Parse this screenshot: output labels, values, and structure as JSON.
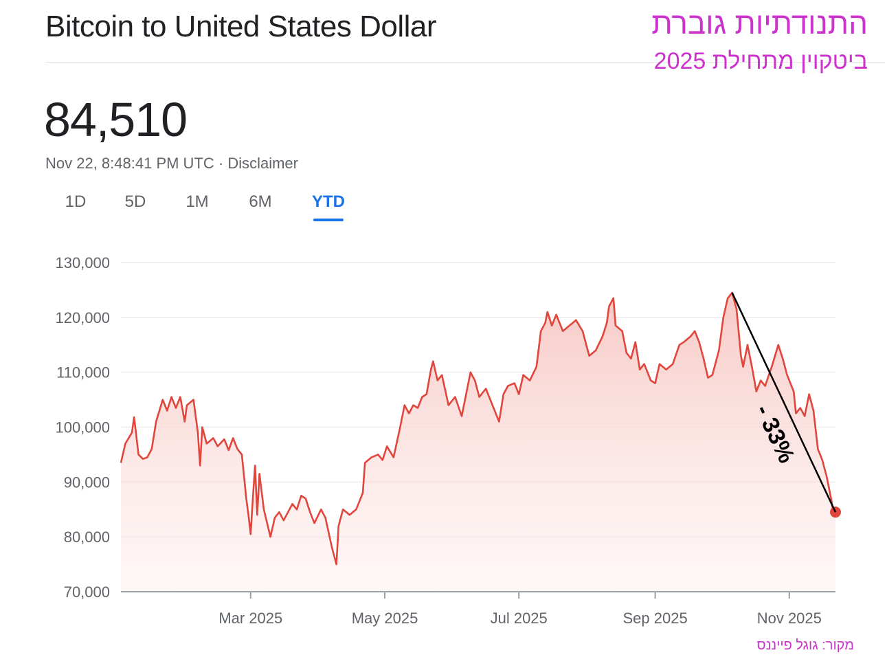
{
  "header": {
    "title": "Bitcoin to United States Dollar",
    "heb_title": "התנודתיות גוברת",
    "heb_subtitle": "ביטקוין מתחילת 2025"
  },
  "quote": {
    "price": "84,510",
    "timestamp": "Nov 22, 8:48:41 PM UTC · Disclaimer"
  },
  "tabs": [
    {
      "label": "1D",
      "active": false
    },
    {
      "label": "5D",
      "active": false
    },
    {
      "label": "1M",
      "active": false
    },
    {
      "label": "6M",
      "active": false
    },
    {
      "label": "YTD",
      "active": true
    }
  ],
  "source_note": "מקור: גוגל פייננס",
  "colors": {
    "line": "#e0463c",
    "fill_top": "#f6c6c2",
    "grid": "#ececec",
    "accent": "#1a73e8",
    "annotation": "#cc33cc"
  },
  "chart_data": {
    "type": "area",
    "title": "Bitcoin to United States Dollar",
    "xlabel": "",
    "ylabel": "",
    "ylim": [
      70000,
      130000
    ],
    "xlim": [
      "2025-01-01",
      "2025-11-22"
    ],
    "yticks": [
      70000,
      80000,
      90000,
      100000,
      110000,
      120000,
      130000
    ],
    "ytick_labels": [
      "70,000",
      "80,000",
      "90,000",
      "100,000",
      "110,000",
      "120,000",
      "130,000"
    ],
    "xticks": [
      "2025-03-01",
      "2025-05-01",
      "2025-07-01",
      "2025-09-01",
      "2025-11-01"
    ],
    "xtick_labels": [
      "Mar 2025",
      "May 2025",
      "Jul 2025",
      "Sep 2025",
      "Nov 2025"
    ],
    "grid": true,
    "legend": "none",
    "series": [
      {
        "points": [
          [
            "2025-01-01",
            93500
          ],
          [
            "2025-01-03",
            97000
          ],
          [
            "2025-01-06",
            99000
          ],
          [
            "2025-01-07",
            101800
          ],
          [
            "2025-01-09",
            95000
          ],
          [
            "2025-01-11",
            94200
          ],
          [
            "2025-01-13",
            94500
          ],
          [
            "2025-01-15",
            96000
          ],
          [
            "2025-01-17",
            101000
          ],
          [
            "2025-01-20",
            105000
          ],
          [
            "2025-01-22",
            103000
          ],
          [
            "2025-01-24",
            105500
          ],
          [
            "2025-01-26",
            103500
          ],
          [
            "2025-01-28",
            105500
          ],
          [
            "2025-01-30",
            101000
          ],
          [
            "2025-01-31",
            104000
          ],
          [
            "2025-02-03",
            105000
          ],
          [
            "2025-02-05",
            99000
          ],
          [
            "2025-02-06",
            93000
          ],
          [
            "2025-02-07",
            100000
          ],
          [
            "2025-02-09",
            97000
          ],
          [
            "2025-02-12",
            98000
          ],
          [
            "2025-02-14",
            96500
          ],
          [
            "2025-02-17",
            97800
          ],
          [
            "2025-02-19",
            95800
          ],
          [
            "2025-02-21",
            98000
          ],
          [
            "2025-02-23",
            96000
          ],
          [
            "2025-02-25",
            95000
          ],
          [
            "2025-02-27",
            87000
          ],
          [
            "2025-02-28",
            84000
          ],
          [
            "2025-03-01",
            80500
          ],
          [
            "2025-03-02",
            87000
          ],
          [
            "2025-03-03",
            93000
          ],
          [
            "2025-03-04",
            84000
          ],
          [
            "2025-03-05",
            91500
          ],
          [
            "2025-03-07",
            85000
          ],
          [
            "2025-03-10",
            80000
          ],
          [
            "2025-03-12",
            83500
          ],
          [
            "2025-03-14",
            84500
          ],
          [
            "2025-03-16",
            83000
          ],
          [
            "2025-03-18",
            84500
          ],
          [
            "2025-03-20",
            86000
          ],
          [
            "2025-03-22",
            85000
          ],
          [
            "2025-03-24",
            87500
          ],
          [
            "2025-03-26",
            87000
          ],
          [
            "2025-03-28",
            84500
          ],
          [
            "2025-03-30",
            82500
          ],
          [
            "2025-04-02",
            85000
          ],
          [
            "2025-04-04",
            83500
          ],
          [
            "2025-04-07",
            78000
          ],
          [
            "2025-04-09",
            75000
          ],
          [
            "2025-04-10",
            82000
          ],
          [
            "2025-04-12",
            85000
          ],
          [
            "2025-04-15",
            84000
          ],
          [
            "2025-04-18",
            85000
          ],
          [
            "2025-04-21",
            88000
          ],
          [
            "2025-04-22",
            93500
          ],
          [
            "2025-04-25",
            94500
          ],
          [
            "2025-04-28",
            95000
          ],
          [
            "2025-04-30",
            94000
          ],
          [
            "2025-05-02",
            96500
          ],
          [
            "2025-05-05",
            94500
          ],
          [
            "2025-05-08",
            100000
          ],
          [
            "2025-05-10",
            104000
          ],
          [
            "2025-05-12",
            102500
          ],
          [
            "2025-05-14",
            104000
          ],
          [
            "2025-05-16",
            103500
          ],
          [
            "2025-05-18",
            105500
          ],
          [
            "2025-05-20",
            106000
          ],
          [
            "2025-05-22",
            110500
          ],
          [
            "2025-05-23",
            112000
          ],
          [
            "2025-05-25",
            108500
          ],
          [
            "2025-05-27",
            109500
          ],
          [
            "2025-05-30",
            104000
          ],
          [
            "2025-06-02",
            105500
          ],
          [
            "2025-06-05",
            102000
          ],
          [
            "2025-06-09",
            110000
          ],
          [
            "2025-06-11",
            108500
          ],
          [
            "2025-06-13",
            105500
          ],
          [
            "2025-06-16",
            107000
          ],
          [
            "2025-06-19",
            104000
          ],
          [
            "2025-06-22",
            101000
          ],
          [
            "2025-06-24",
            106000
          ],
          [
            "2025-06-26",
            107500
          ],
          [
            "2025-06-29",
            108000
          ],
          [
            "2025-07-01",
            106000
          ],
          [
            "2025-07-03",
            109500
          ],
          [
            "2025-07-06",
            108500
          ],
          [
            "2025-07-09",
            111000
          ],
          [
            "2025-07-11",
            117500
          ],
          [
            "2025-07-13",
            119000
          ],
          [
            "2025-07-14",
            121000
          ],
          [
            "2025-07-16",
            118500
          ],
          [
            "2025-07-18",
            120500
          ],
          [
            "2025-07-21",
            117500
          ],
          [
            "2025-07-24",
            118500
          ],
          [
            "2025-07-27",
            119500
          ],
          [
            "2025-07-30",
            117500
          ],
          [
            "2025-08-02",
            113000
          ],
          [
            "2025-08-05",
            114000
          ],
          [
            "2025-08-08",
            116500
          ],
          [
            "2025-08-10",
            119000
          ],
          [
            "2025-08-11",
            122000
          ],
          [
            "2025-08-13",
            123500
          ],
          [
            "2025-08-14",
            118500
          ],
          [
            "2025-08-17",
            117500
          ],
          [
            "2025-08-19",
            113500
          ],
          [
            "2025-08-21",
            112500
          ],
          [
            "2025-08-23",
            115500
          ],
          [
            "2025-08-25",
            110500
          ],
          [
            "2025-08-27",
            111500
          ],
          [
            "2025-08-30",
            108500
          ],
          [
            "2025-09-01",
            108000
          ],
          [
            "2025-09-03",
            111500
          ],
          [
            "2025-09-06",
            110500
          ],
          [
            "2025-09-09",
            111500
          ],
          [
            "2025-09-12",
            115000
          ],
          [
            "2025-09-14",
            115500
          ],
          [
            "2025-09-17",
            116500
          ],
          [
            "2025-09-19",
            117500
          ],
          [
            "2025-09-21",
            115500
          ],
          [
            "2025-09-23",
            112500
          ],
          [
            "2025-09-25",
            109000
          ],
          [
            "2025-09-27",
            109500
          ],
          [
            "2025-09-30",
            114000
          ],
          [
            "2025-10-02",
            120000
          ],
          [
            "2025-10-04",
            123500
          ],
          [
            "2025-10-06",
            124500
          ],
          [
            "2025-10-08",
            121500
          ],
          [
            "2025-10-10",
            113000
          ],
          [
            "2025-10-11",
            111000
          ],
          [
            "2025-10-13",
            115000
          ],
          [
            "2025-10-15",
            111000
          ],
          [
            "2025-10-17",
            106500
          ],
          [
            "2025-10-19",
            108500
          ],
          [
            "2025-10-21",
            107500
          ],
          [
            "2025-10-24",
            111000
          ],
          [
            "2025-10-27",
            115000
          ],
          [
            "2025-10-29",
            112500
          ],
          [
            "2025-10-31",
            109500
          ],
          [
            "2025-11-03",
            106500
          ],
          [
            "2025-11-04",
            102500
          ],
          [
            "2025-11-06",
            103500
          ],
          [
            "2025-11-08",
            102000
          ],
          [
            "2025-11-10",
            106000
          ],
          [
            "2025-11-12",
            103000
          ],
          [
            "2025-11-14",
            96000
          ],
          [
            "2025-11-16",
            94000
          ],
          [
            "2025-11-17",
            92500
          ],
          [
            "2025-11-18",
            91000
          ],
          [
            "2025-11-19",
            89000
          ],
          [
            "2025-11-20",
            87000
          ],
          [
            "2025-11-21",
            84500
          ],
          [
            "2025-11-22",
            84510
          ]
        ]
      }
    ],
    "annotations": [
      {
        "type": "arrow-line",
        "from": [
          "2025-10-06",
          124500
        ],
        "to": [
          "2025-11-22",
          84510
        ],
        "label": "- 33%"
      }
    ]
  }
}
